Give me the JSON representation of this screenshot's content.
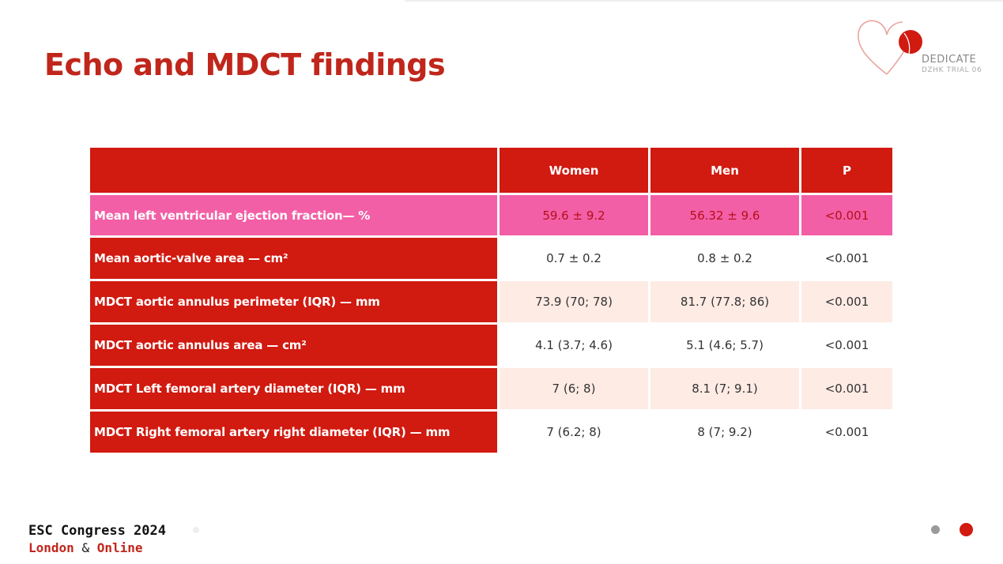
{
  "slide": {
    "title": "Echo and MDCT findings"
  },
  "logo": {
    "name": "DEDICATE",
    "subtitle": "DZHK TRIAL 06",
    "colors": {
      "heart": "#d11a10",
      "ring": "#e8a5a0"
    }
  },
  "table": {
    "headers": [
      "",
      "Women",
      "Men",
      "P"
    ],
    "rows": [
      {
        "label": "Mean left ventricular ejection fraction— %",
        "women": "59.6 ± 9.2",
        "men": "56.32 ± 9.6",
        "p": "<0.001"
      },
      {
        "label": "Mean aortic-valve area  — cm²",
        "women": "0.7 ± 0.2",
        "men": "0.8 ± 0.2",
        "p": "<0.001"
      },
      {
        "label": "MDCT aortic annulus perimeter (IQR) — mm",
        "women": "73.9 (70; 78)",
        "men": "81.7 (77.8; 86)",
        "p": "<0.001"
      },
      {
        "label": "MDCT aortic annulus area — cm²",
        "women": "4.1 (3.7; 4.6)",
        "men": "5.1 (4.6; 5.7)",
        "p": "<0.001"
      },
      {
        "label": "MDCT Left femoral artery diameter (IQR) — mm",
        "women": "7 (6; 8)",
        "men": "8.1 (7; 9.1)",
        "p": "<0.001"
      },
      {
        "label": "MDCT Right femoral artery right diameter (IQR) — mm",
        "women": "7 (6.2; 8)",
        "men": "8 (7; 9.2)",
        "p": "<0.001"
      }
    ],
    "colors": {
      "header": "#d11a10",
      "highlight": "#f35fa6",
      "stripe": "#fdebe4"
    }
  },
  "footer": {
    "line1": "ESC Congress 2024",
    "line2_a": "London",
    "line2_amp": "&",
    "line2_b": "Online"
  },
  "slide_nav": {
    "icons": [
      "grey-dot-icon",
      "red-dot-icon"
    ]
  }
}
